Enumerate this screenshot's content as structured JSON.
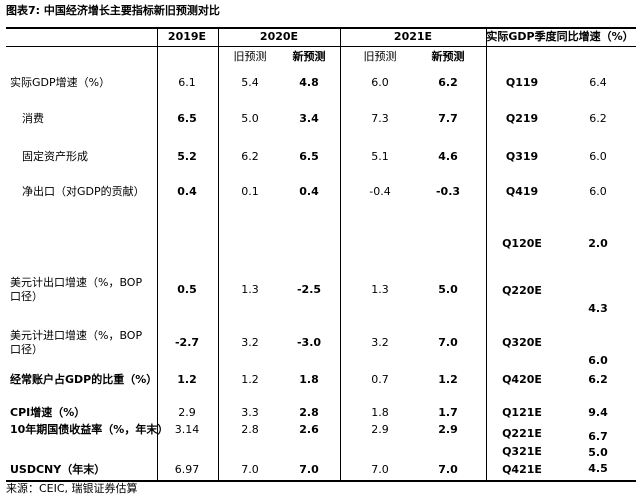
{
  "title": "图表7: 中国经济增长主要指标新旧预测对比",
  "header": {
    "columns": [
      "2019E",
      "2020E",
      "2021E",
      "实际GDP季度同比增速（%）"
    ],
    "subcolumns": [
      "旧预测",
      "新预测",
      "旧预测",
      "新预测"
    ]
  },
  "table": {
    "rows": [
      {
        "label": "实际GDP增速（%）",
        "values": [
          "6.1",
          "5.4",
          "4.8",
          "6.0",
          "6.2"
        ]
      },
      {
        "label": "消费",
        "values": [
          "6.5",
          "5.0",
          "3.4",
          "7.3",
          "7.7"
        ]
      },
      {
        "label": "固定资产形成",
        "values": [
          "5.2",
          "6.2",
          "6.5",
          "5.1",
          "4.6"
        ]
      },
      {
        "label": "净出口（对GDP的贡献）",
        "values": [
          "0.4",
          "0.1",
          "0.4",
          "-0.4",
          "-0.3"
        ]
      },
      {
        "label": "美元计出口增速（%，BOP口径）",
        "values": [
          "0.5",
          "1.3",
          "-2.5",
          "1.3",
          "5.0"
        ]
      },
      {
        "label": "美元计进口增速（%，BOP口径）",
        "values": [
          "-2.7",
          "3.2",
          "-3.0",
          "3.2",
          "7.0"
        ]
      },
      {
        "label": "经常账户占GDP的比重（%）",
        "values": [
          "1.2",
          "1.2",
          "1.8",
          "0.7",
          "1.2"
        ]
      },
      {
        "label": "CPI增速（%）",
        "values": [
          "2.9",
          "3.3",
          "2.8",
          "1.8",
          "1.7"
        ]
      },
      {
        "label": "10年期国债收益率（%，年末）",
        "values": [
          "3.14",
          "2.8",
          "2.6",
          "2.9",
          "2.9"
        ]
      },
      {
        "label": "USDCNY（年末）",
        "values": [
          "6.97",
          "7.0",
          "7.0",
          "7.0",
          "7.0"
        ]
      }
    ]
  },
  "quarterly": [
    {
      "quarter": "Q119",
      "value": "6.4"
    },
    {
      "quarter": "Q219",
      "value": "6.2"
    },
    {
      "quarter": "Q319",
      "value": "6.0"
    },
    {
      "quarter": "Q419",
      "value": "6.0"
    },
    {
      "quarter": "Q120E",
      "value": "2.0"
    },
    {
      "quarter": "Q220E",
      "value": "4.3"
    },
    {
      "quarter": "Q320E",
      "value": "6.0"
    },
    {
      "quarter": "Q420E",
      "value": "6.2"
    },
    {
      "quarter": "Q121E",
      "value": "9.4"
    },
    {
      "quarter": "Q221E",
      "value": "6.7"
    },
    {
      "quarter": "Q321E",
      "value": "5.0"
    },
    {
      "quarter": "Q421E",
      "value": "4.5"
    }
  ],
  "source": "来源：CEIC, 瑞银证券估算"
}
